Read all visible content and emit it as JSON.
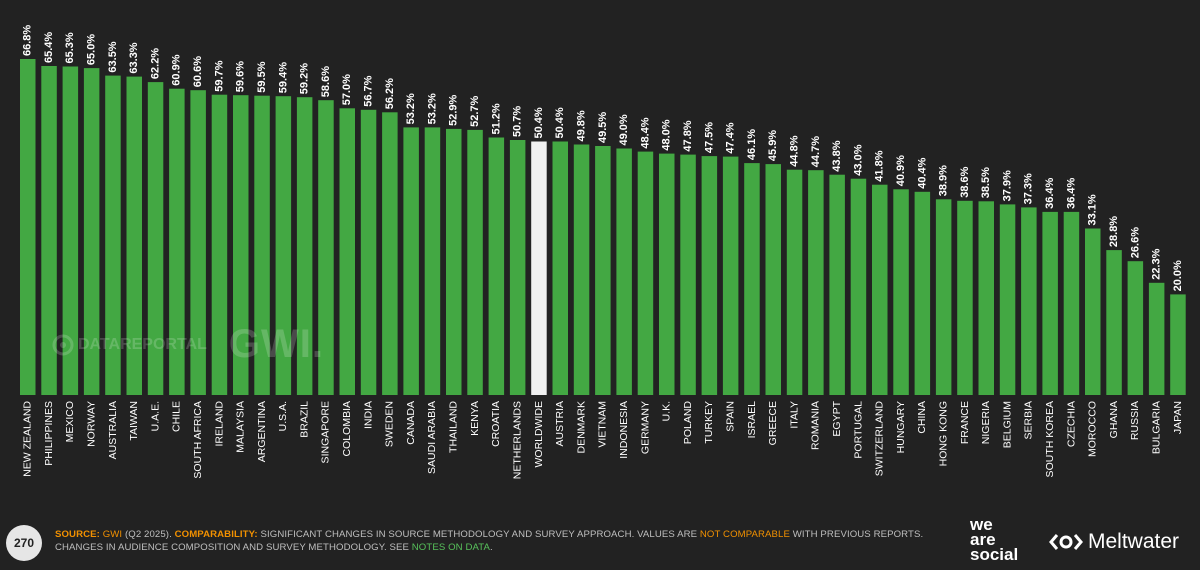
{
  "chart_data": {
    "type": "bar",
    "highlight": "WORLDWIDE",
    "colors": {
      "bar": "#43a843",
      "highlight": "#f0f0f0",
      "background": "#222222"
    },
    "categories": [
      "NEW ZEALAND",
      "PHILIPPINES",
      "MEXICO",
      "NORWAY",
      "AUSTRALIA",
      "TAIWAN",
      "U.A.E.",
      "CHILE",
      "SOUTH AFRICA",
      "IRELAND",
      "MALAYSIA",
      "ARGENTINA",
      "U.S.A.",
      "BRAZIL",
      "SINGAPORE",
      "COLOMBIA",
      "INDIA",
      "SWEDEN",
      "CANADA",
      "SAUDI ARABIA",
      "THAILAND",
      "KENYA",
      "CROATIA",
      "NETHERLANDS",
      "WORLDWIDE",
      "AUSTRIA",
      "DENMARK",
      "VIETNAM",
      "INDONESIA",
      "GERMANY",
      "U.K.",
      "POLAND",
      "TURKEY",
      "SPAIN",
      "ISRAEL",
      "GREECE",
      "ITALY",
      "ROMANIA",
      "EGYPT",
      "PORTUGAL",
      "SWITZERLAND",
      "HUNGARY",
      "CHINA",
      "HONG KONG",
      "FRANCE",
      "NIGERIA",
      "BELGIUM",
      "SERBIA",
      "SOUTH KOREA",
      "CZECHIA",
      "MOROCCO",
      "GHANA",
      "RUSSIA",
      "BULGARIA",
      "JAPAN"
    ],
    "values": [
      66.8,
      65.4,
      65.3,
      65.0,
      63.5,
      63.3,
      62.2,
      60.9,
      60.6,
      59.7,
      59.6,
      59.5,
      59.4,
      59.2,
      58.6,
      57.0,
      56.7,
      56.2,
      53.2,
      53.2,
      52.9,
      52.7,
      51.2,
      50.7,
      50.4,
      50.4,
      49.8,
      49.5,
      49.0,
      48.4,
      48.0,
      47.8,
      47.5,
      47.4,
      46.1,
      45.9,
      44.8,
      44.7,
      43.8,
      43.0,
      41.8,
      40.9,
      40.4,
      38.9,
      38.6,
      38.5,
      37.9,
      37.3,
      36.4,
      36.4,
      33.1,
      28.8,
      26.6,
      22.3,
      20.0
    ],
    "labels": [
      "66.8%",
      "65.4%",
      "65.3%",
      "65.0%",
      "63.5%",
      "63.3%",
      "62.2%",
      "60.9%",
      "60.6%",
      "59.7%",
      "59.6%",
      "59.5%",
      "59.4%",
      "59.2%",
      "58.6%",
      "57.0%",
      "56.7%",
      "56.2%",
      "53.2%",
      "53.2%",
      "52.9%",
      "52.7%",
      "51.2%",
      "50.7%",
      "50.4%",
      "50.4%",
      "49.8%",
      "49.5%",
      "49.0%",
      "48.4%",
      "48.0%",
      "47.8%",
      "47.5%",
      "47.4%",
      "46.1%",
      "45.9%",
      "44.8%",
      "44.7%",
      "43.8%",
      "43.0%",
      "41.8%",
      "40.9%",
      "40.4%",
      "38.9%",
      "38.6%",
      "38.5%",
      "37.9%",
      "37.3%",
      "36.4%",
      "36.4%",
      "33.1%",
      "28.8%",
      "26.6%",
      "22.3%",
      "20.0%"
    ],
    "ylim": [
      0,
      66.8
    ],
    "grid": false,
    "legend": "none"
  },
  "footer": {
    "page_number": "270",
    "source_label": "SOURCE:",
    "source_text": "GWI",
    "source_rest": " (Q2 2025).",
    "comparability_label": "COMPARABILITY:",
    "text_part1": " SIGNIFICANT CHANGES IN SOURCE METHODOLOGY AND SURVEY APPROACH. VALUES ARE ",
    "not_comparable": "NOT COMPARABLE",
    "text_part2": " WITH PREVIOUS REPORTS. CHANGES IN AUDIENCE COMPOSITION AND SURVEY METHODOLOGY. SEE ",
    "notes_link": "NOTES ON DATA",
    "text_end": "."
  },
  "branding": {
    "we": "we",
    "are": "are",
    "social": "social",
    "meltwater": "Meltwater",
    "watermark_datareportal": "DATAREPORTAL",
    "watermark_gwi": "GWI."
  }
}
